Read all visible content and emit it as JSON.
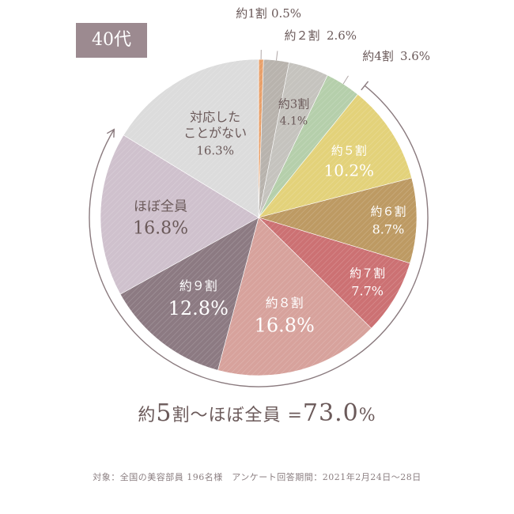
{
  "age_label": "40代",
  "summary": {
    "prefix": "約",
    "number": "5",
    "mid": "割～ほぼ全員 =",
    "total": "73.0",
    "unit": "%"
  },
  "note": "対象：全国の美容部員 196名様　アンケート回答期間：2021年2月24日～28日",
  "chart_data": {
    "type": "pie",
    "unit": "%",
    "slices": [
      {
        "label": "約1割",
        "value": 0.5,
        "value_text": "0.5%",
        "color": "#e8a06a"
      },
      {
        "label": "約２割",
        "value": 2.6,
        "value_text": "2.6%",
        "color": "#b8b3ad"
      },
      {
        "label": "約3割",
        "value": 4.1,
        "value_text": "4.1%",
        "color": "#c5c3be"
      },
      {
        "label": "約4割",
        "value": 3.6,
        "value_text": "3.6%",
        "color": "#b5cfab"
      },
      {
        "label": "約５割",
        "value": 10.2,
        "value_text": "10.2%",
        "color": "#e3d27a"
      },
      {
        "label": "約６割",
        "value": 8.7,
        "value_text": "8.7%",
        "color": "#bd9a63"
      },
      {
        "label": "約７割",
        "value": 7.7,
        "value_text": "7.7%",
        "color": "#cc7173"
      },
      {
        "label": "約８割",
        "value": 16.8,
        "value_text": "16.8%",
        "color": "#d7a29c"
      },
      {
        "label": "約９割",
        "value": 12.8,
        "value_text": "12.8%",
        "color": "#8c7a82"
      },
      {
        "label": "ほぼ全員",
        "value": 16.8,
        "value_text": "16.8%",
        "color": "#cfc1cd"
      },
      {
        "label": "対応したことがない",
        "value": 16.3,
        "value_text": "16.3%",
        "color": "#dcdcdc"
      }
    ]
  }
}
